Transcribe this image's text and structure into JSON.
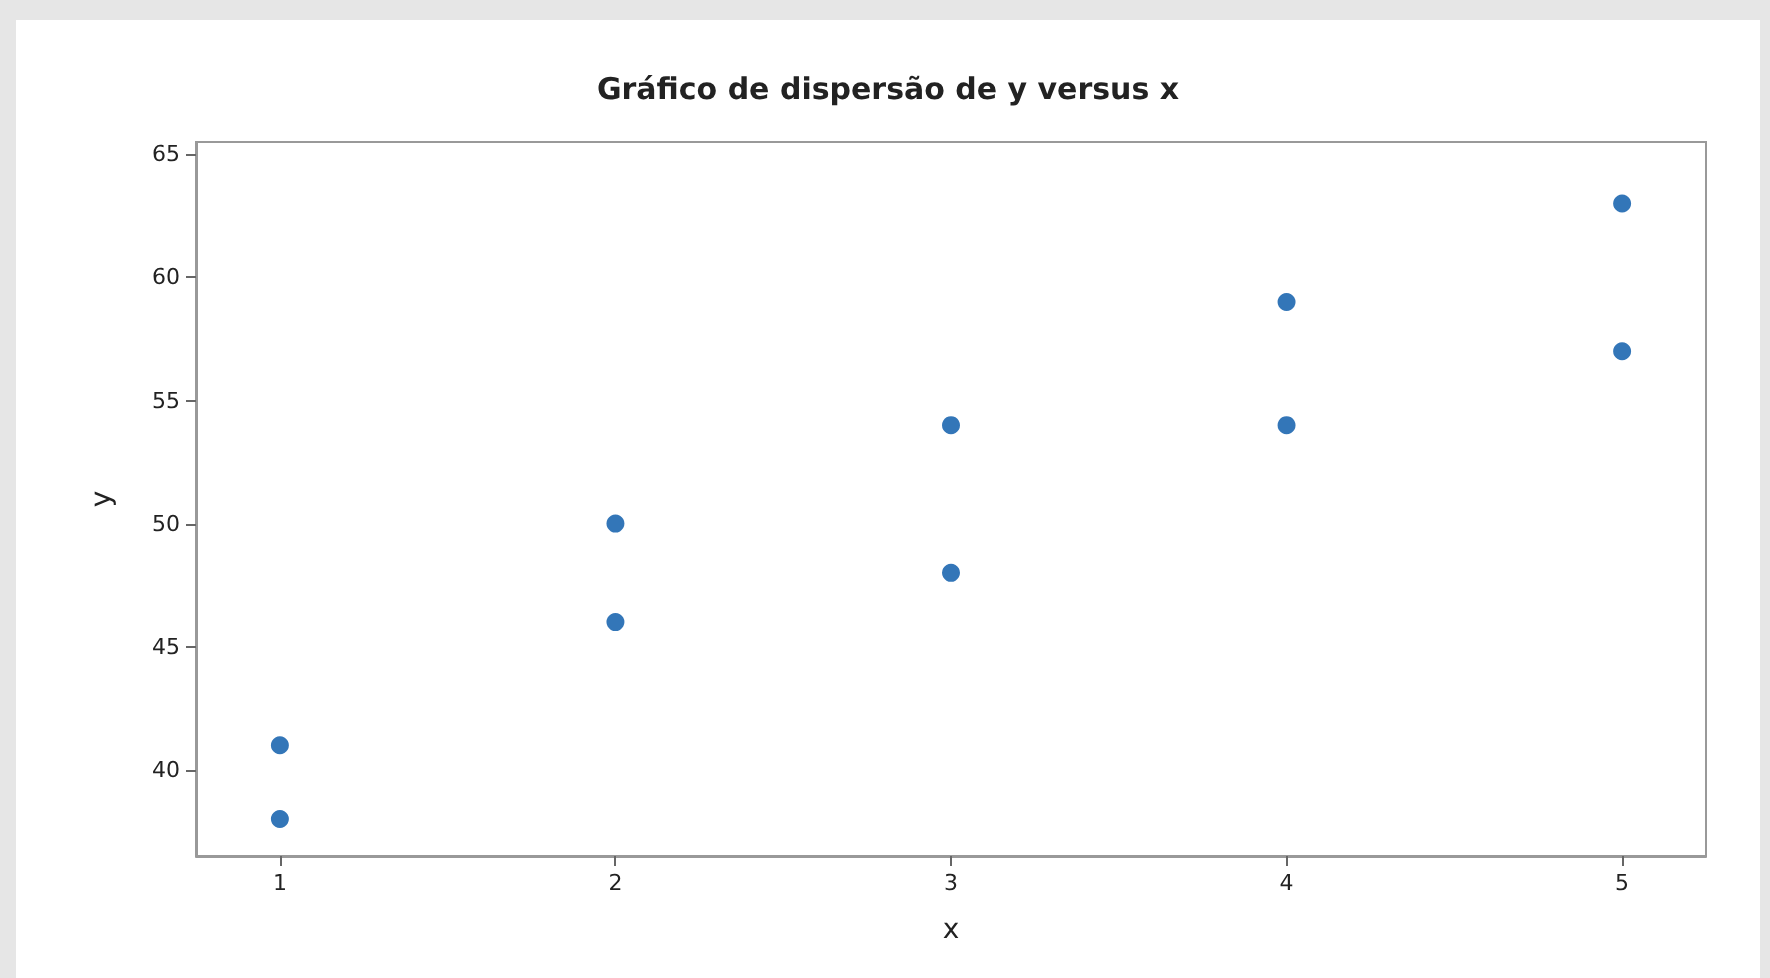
{
  "chart_data": {
    "type": "scatter",
    "title": "Gráfico de dispersão de y versus x",
    "xlabel": "x",
    "ylabel": "y",
    "x": [
      1,
      1,
      2,
      2,
      3,
      3,
      4,
      4,
      5,
      5
    ],
    "values": [
      41,
      38,
      50,
      46,
      54,
      48,
      59,
      54,
      63,
      57
    ],
    "color": "#0054a6",
    "marker": "circle",
    "xlim": [
      0.75,
      5.25
    ],
    "xticks": [
      1,
      2,
      3,
      4,
      5
    ],
    "ylim": [
      36.5,
      65.5
    ],
    "yticks": [
      40,
      45,
      50,
      55,
      60,
      65
    ],
    "grid": false
  }
}
